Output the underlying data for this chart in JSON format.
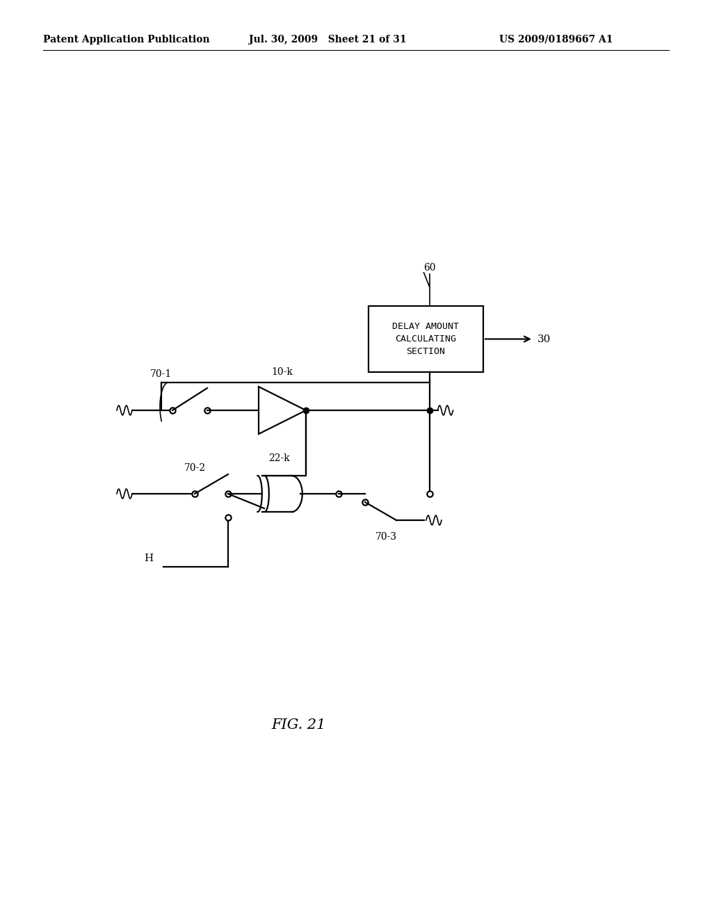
{
  "bg_color": "#ffffff",
  "header_left": "Patent Application Publication",
  "header_mid": "Jul. 30, 2009   Sheet 21 of 31",
  "header_right": "US 2009/0189667 A1",
  "fig_label": "FIG. 21",
  "box_text": "DELAY AMOUNT\nCALCULATING\nSECTION",
  "label_60": "60",
  "label_30": "30",
  "label_70_1": "70-1",
  "label_70_2": "70-2",
  "label_70_3": "70-3",
  "label_10k": "10-k",
  "label_22k": "22-k",
  "label_H": "H",
  "lw": 1.6,
  "lw_thin": 1.2
}
